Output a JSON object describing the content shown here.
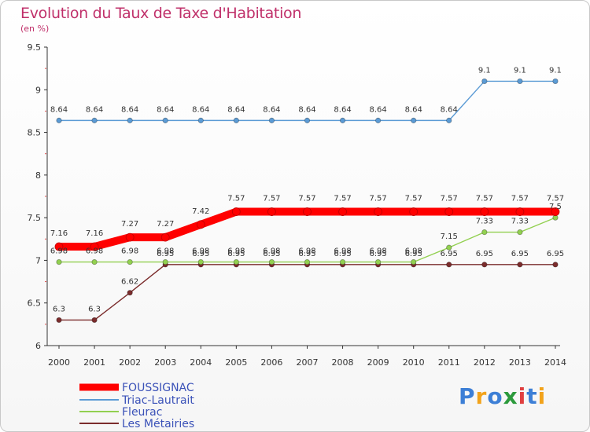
{
  "title": "Evolution du Taux de Taxe d'Habitation",
  "subtitle": "(en %)",
  "logo": "Proxiti",
  "chart_data": {
    "type": "line",
    "title": "Evolution du Taux de Taxe d'Habitation",
    "ylabel": "(en %)",
    "xlabel": "",
    "ylim": [
      6,
      9.5
    ],
    "yticks": [
      "6",
      "6.5",
      "7",
      "7.5",
      "8",
      "8.5",
      "9",
      "9.5"
    ],
    "categories": [
      "2000",
      "2001",
      "2002",
      "2003",
      "2004",
      "2005",
      "2006",
      "2007",
      "2008",
      "2009",
      "2010",
      "2011",
      "2012",
      "2013",
      "2014"
    ],
    "series": [
      {
        "name": "FOUSSIGNAC",
        "color": "#ff0000",
        "values": [
          7.16,
          7.16,
          7.27,
          7.27,
          7.42,
          7.57,
          7.57,
          7.57,
          7.57,
          7.57,
          7.57,
          7.57,
          7.57,
          7.57,
          7.57
        ],
        "labels": [
          "7.16",
          "7.16",
          "7.27",
          "7.27",
          "7.42",
          "7.57",
          "7.57",
          "7.57",
          "7.57",
          "7.57",
          "7.57",
          "7.57",
          "7.57",
          "7.57",
          "7.57"
        ]
      },
      {
        "name": "Triac-Lautrait",
        "color": "#5b9bd5",
        "values": [
          8.64,
          8.64,
          8.64,
          8.64,
          8.64,
          8.64,
          8.64,
          8.64,
          8.64,
          8.64,
          8.64,
          8.64,
          9.1,
          9.1,
          9.1
        ],
        "labels": [
          "8.64",
          "8.64",
          "8.64",
          "8.64",
          "8.64",
          "8.64",
          "8.64",
          "8.64",
          "8.64",
          "8.64",
          "8.64",
          "8.64",
          "9.1",
          "9.1",
          "9.1"
        ]
      },
      {
        "name": "Fleurac",
        "color": "#92d050",
        "values": [
          6.98,
          6.98,
          6.98,
          6.98,
          6.98,
          6.98,
          6.98,
          6.98,
          6.98,
          6.98,
          6.98,
          7.15,
          7.33,
          7.33,
          7.5
        ],
        "labels": [
          "6.98",
          "6.98",
          "6.98",
          "6.98",
          "6.98",
          "6.98",
          "6.98",
          "6.98",
          "6.98",
          "6.98",
          "6.98",
          "7.15",
          "7.33",
          "7.33",
          "7.5"
        ]
      },
      {
        "name": "Les Métairies",
        "color": "#7b2c2c",
        "values": [
          6.3,
          6.3,
          6.62,
          6.95,
          6.95,
          6.95,
          6.95,
          6.95,
          6.95,
          6.95,
          6.95,
          6.95,
          6.95,
          6.95,
          6.95
        ],
        "labels": [
          "6.3",
          "6.3",
          "6.62",
          "6.95",
          "6.95",
          "6.95",
          "6.95",
          "6.95",
          "6.95",
          "6.95",
          "6.95",
          "6.95",
          "6.95",
          "6.95",
          "6.95"
        ]
      }
    ],
    "legend": [
      "FOUSSIGNAC",
      "Triac-Lautrait",
      "Fleurac",
      "Les Métairies"
    ],
    "grid": false,
    "legend_position": "bottom-left"
  }
}
